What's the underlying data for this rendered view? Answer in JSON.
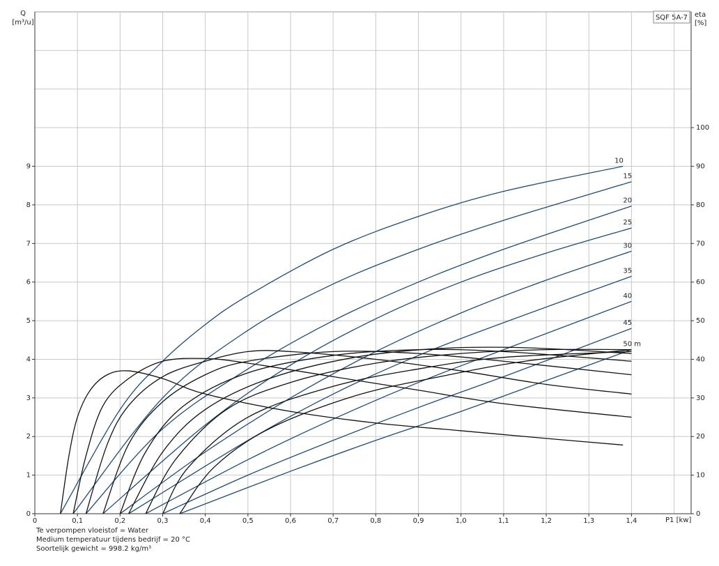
{
  "chart_data": {
    "type": "line",
    "title": "SQF 5A-7",
    "y_label": "Q",
    "y_unit": "[m³/u]",
    "y2_label": "eta",
    "y2_unit": "[%]",
    "x_label": "P1 [kw]",
    "notes": [
      "Te verpompen vloeistof = Water",
      "Medium temperatuur tijdens bedrijf = 20 °C",
      "Soortelijk gewicht = 998.2 kg/m³"
    ],
    "xlim": [
      0,
      1.54
    ],
    "ylim": [
      0,
      13
    ],
    "y2lim": [
      0,
      130
    ],
    "xticks": [
      0,
      {
        "value": 0.1,
        "label": "0,1"
      },
      {
        "value": 0.2,
        "label": "0,2"
      },
      {
        "value": 0.3,
        "label": "0,3"
      },
      {
        "value": 0.4,
        "label": "0,4"
      },
      {
        "value": 0.5,
        "label": "0,5"
      },
      {
        "value": 0.6,
        "label": "0,6"
      },
      {
        "value": 0.7,
        "label": "0,7"
      },
      {
        "value": 0.8,
        "label": "0,8"
      },
      {
        "value": 0.9,
        "label": "0,9"
      },
      {
        "value": 1.0,
        "label": "1,0"
      },
      {
        "value": 1.1,
        "label": "1,1"
      },
      {
        "value": 1.2,
        "label": "1,2"
      },
      {
        "value": 1.3,
        "label": "1,3"
      },
      {
        "value": 1.4,
        "label": "1,4"
      }
    ],
    "yticks": [
      0,
      1,
      2,
      3,
      4,
      5,
      6,
      7,
      8,
      9
    ],
    "y2ticks": [
      0,
      10,
      20,
      30,
      40,
      50,
      60,
      70,
      80,
      90,
      100
    ],
    "xgrid": [
      0.1,
      0.2,
      0.3,
      0.4,
      0.5,
      0.6,
      0.7,
      0.8,
      0.9,
      1.0,
      1.1,
      1.2,
      1.3,
      1.4,
      1.5
    ],
    "ygrid": [
      1,
      2,
      3,
      4,
      5,
      6,
      7,
      8,
      9,
      10,
      11,
      12
    ],
    "grid": true,
    "series": [
      {
        "name": "10",
        "color": "#1f4a78",
        "x": [
          0.06,
          0.2,
          0.3,
          0.4,
          0.5,
          0.7,
          0.9,
          1.1,
          1.38
        ],
        "values": [
          0,
          2.7,
          3.95,
          4.9,
          5.65,
          6.85,
          7.7,
          8.35,
          9.0
        ]
      },
      {
        "name": "15",
        "color": "#1f4a78",
        "x": [
          0.09,
          0.3,
          0.5,
          0.7,
          0.9,
          1.1,
          1.4
        ],
        "values": [
          0,
          3.0,
          4.75,
          5.95,
          6.85,
          7.6,
          8.6
        ]
      },
      {
        "name": "20",
        "color": "#1f4a78",
        "x": [
          0.12,
          0.3,
          0.5,
          0.7,
          0.9,
          1.1,
          1.4
        ],
        "values": [
          0,
          2.2,
          3.75,
          5.0,
          6.0,
          6.85,
          7.97
        ]
      },
      {
        "name": "25",
        "color": "#1f4a78",
        "x": [
          0.16,
          0.4,
          0.6,
          0.8,
          1.0,
          1.2,
          1.4
        ],
        "values": [
          0,
          2.3,
          3.85,
          5.05,
          6.0,
          6.75,
          7.4
        ]
      },
      {
        "name": "30",
        "color": "#1f4a78",
        "x": [
          0.2,
          0.4,
          0.6,
          0.8,
          1.0,
          1.2,
          1.4
        ],
        "values": [
          0,
          1.6,
          3.0,
          4.2,
          5.2,
          6.05,
          6.8
        ]
      },
      {
        "name": "35",
        "color": "#1f4a78",
        "x": [
          0.22,
          0.5,
          0.7,
          0.9,
          1.1,
          1.4
        ],
        "values": [
          0,
          1.9,
          3.1,
          4.1,
          4.95,
          6.15
        ]
      },
      {
        "name": "40",
        "color": "#1f4a78",
        "x": [
          0.26,
          0.5,
          0.7,
          0.9,
          1.1,
          1.4
        ],
        "values": [
          0,
          1.4,
          2.45,
          3.4,
          4.25,
          5.5
        ]
      },
      {
        "name": "45",
        "color": "#1f4a78",
        "x": [
          0.3,
          0.5,
          0.7,
          0.9,
          1.1,
          1.4
        ],
        "values": [
          0,
          1.0,
          1.9,
          2.75,
          3.55,
          4.8
        ]
      },
      {
        "name": "50 m",
        "color": "#1f4a78",
        "x": [
          0.34,
          0.6,
          0.8,
          1.0,
          1.2,
          1.4
        ],
        "values": [
          0,
          1.1,
          1.9,
          2.65,
          3.45,
          4.25
        ]
      },
      {
        "axis": "y2",
        "color": "#111111",
        "x": [
          0.06,
          0.08,
          0.1,
          0.13,
          0.17,
          0.22,
          0.3,
          0.4,
          0.6,
          0.8,
          1.0,
          1.2,
          1.38
        ],
        "values": [
          0,
          15,
          25,
          32,
          36,
          37,
          35,
          31,
          26.5,
          23.5,
          21.5,
          19.5,
          17.8
        ]
      },
      {
        "axis": "y2",
        "color": "#111111",
        "x": [
          0.09,
          0.12,
          0.16,
          0.22,
          0.3,
          0.4,
          0.5,
          0.7,
          0.9,
          1.1,
          1.4
        ],
        "values": [
          0,
          15,
          28,
          35,
          39.5,
          40.2,
          39,
          35.5,
          32,
          28.5,
          25
        ]
      },
      {
        "axis": "y2",
        "color": "#111111",
        "x": [
          0.12,
          0.17,
          0.22,
          0.3,
          0.4,
          0.5,
          0.6,
          0.8,
          1.0,
          1.2,
          1.4
        ],
        "values": [
          0,
          18,
          28,
          35.5,
          39.5,
          42,
          42,
          40,
          37,
          33.5,
          31
        ]
      },
      {
        "axis": "y2",
        "color": "#111111",
        "x": [
          0.16,
          0.22,
          0.3,
          0.4,
          0.5,
          0.7,
          0.9,
          1.1,
          1.4
        ],
        "values": [
          0,
          18,
          29,
          36,
          39.5,
          42,
          41.5,
          39.5,
          36
        ]
      },
      {
        "axis": "y2",
        "color": "#111111",
        "x": [
          0.2,
          0.26,
          0.35,
          0.5,
          0.7,
          0.9,
          1.1,
          1.4
        ],
        "values": [
          0,
          16,
          28,
          36.5,
          41,
          42.5,
          42,
          39.5
        ]
      },
      {
        "axis": "y2",
        "color": "#111111",
        "x": [
          0.22,
          0.3,
          0.4,
          0.55,
          0.75,
          0.95,
          1.15,
          1.4
        ],
        "values": [
          0,
          16,
          27,
          35,
          40.5,
          42.8,
          43,
          41.5
        ]
      },
      {
        "axis": "y2",
        "color": "#111111",
        "x": [
          0.26,
          0.33,
          0.45,
          0.6,
          0.8,
          1.0,
          1.2,
          1.4
        ],
        "values": [
          0,
          14,
          27,
          34,
          39,
          41.5,
          42.5,
          42.5
        ]
      },
      {
        "axis": "y2",
        "color": "#111111",
        "x": [
          0.3,
          0.36,
          0.5,
          0.7,
          0.9,
          1.1,
          1.4
        ],
        "values": [
          0,
          12,
          25,
          33,
          37.5,
          40.5,
          42
        ]
      },
      {
        "axis": "y2",
        "color": "#111111",
        "x": [
          0.34,
          0.42,
          0.55,
          0.75,
          0.95,
          1.15,
          1.4
        ],
        "values": [
          0,
          12,
          22,
          30.5,
          35.5,
          39.5,
          42.5
        ]
      }
    ]
  }
}
